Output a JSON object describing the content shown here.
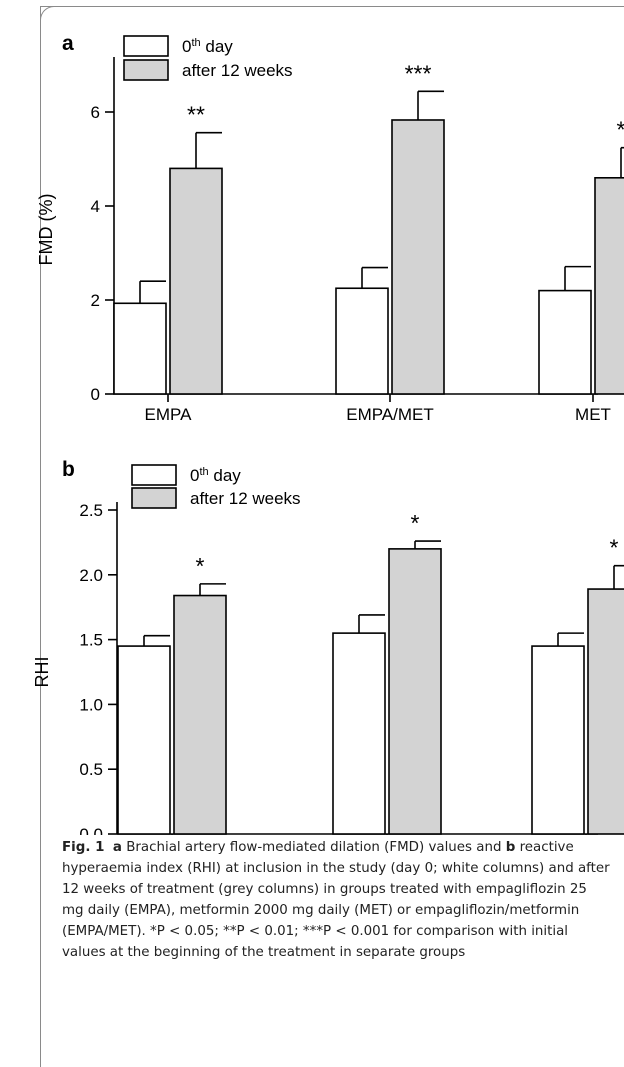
{
  "chart_data": [
    {
      "type": "bar",
      "panel_label": "a",
      "categories": [
        "EMPA",
        "EMPA/MET",
        "MET"
      ],
      "series": [
        {
          "name": "0th day",
          "values": [
            1.93,
            2.25,
            2.2
          ],
          "errors": [
            0.47,
            0.44,
            0.51
          ],
          "color": "#ffffff"
        },
        {
          "name": "after 12 weeks",
          "values": [
            4.8,
            5.83,
            4.6
          ],
          "errors": [
            0.76,
            0.61,
            0.64
          ],
          "color": "#d3d3d3"
        }
      ],
      "significance": [
        "**",
        "***",
        "*"
      ],
      "ylabel": "FMD (%)",
      "ylim": [
        0,
        7
      ],
      "yticks": [
        "0",
        "2",
        "4",
        "6"
      ],
      "ytick_values": [
        0,
        2,
        4,
        6
      ],
      "legend": {
        "placement": "top-left",
        "labels": [
          "0",
          "after 12 weeks"
        ],
        "superscript": "th",
        "suffix": " day"
      },
      "grid": false
    },
    {
      "type": "bar",
      "panel_label": "b",
      "categories": [
        "EMPA",
        "EMPA/MET",
        "MET"
      ],
      "series": [
        {
          "name": "0th day",
          "values": [
            1.45,
            1.55,
            1.45
          ],
          "errors": [
            0.08,
            0.14,
            0.1
          ],
          "color": "#ffffff"
        },
        {
          "name": "after 12 weeks",
          "values": [
            1.84,
            2.2,
            1.89
          ],
          "errors": [
            0.09,
            0.06,
            0.18
          ],
          "color": "#d3d3d3"
        }
      ],
      "significance": [
        "*",
        "*",
        "*"
      ],
      "ylabel": "RHI",
      "ylim": [
        0,
        2.5
      ],
      "yticks": [
        "0.0",
        "0.5",
        "1.0",
        "1.5",
        "2.0",
        "2.5"
      ],
      "ytick_values": [
        0,
        0.5,
        1.0,
        1.5,
        2.0,
        2.5
      ],
      "legend": {
        "placement": "top-left",
        "labels": [
          "0",
          "after 12 weeks"
        ],
        "superscript": "th",
        "suffix": " day"
      },
      "grid": false
    }
  ],
  "caption": {
    "fig_label": "Fig. 1",
    "label_a": "a",
    "text_1": " Brachial artery flow-mediated dilation (FMD) values and ",
    "label_b": "b",
    "text_2": " reactive hyperaemia index (RHI) at inclusion in the study (day 0; white columns) and after 12 weeks of treatment (grey columns) in groups treated with empagliflozin 25 mg daily (EMPA), metformin 2000 mg daily (MET) or empagliflozin/metformin (EMPA/MET). *P < 0.05; **P < 0.01; ***P < 0.001 for comparison with initial values at the beginning of the treatment in separate groups"
  }
}
